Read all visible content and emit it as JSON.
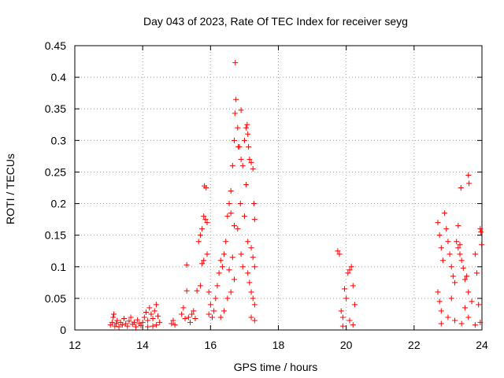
{
  "chart_data": {
    "type": "scatter",
    "title": "Day 043 of 2023, Rate Of TEC Index for receiver seyg",
    "xlabel": "GPS time / hours",
    "ylabel": "ROTI / TECUs",
    "xlim": [
      12,
      24
    ],
    "ylim": [
      0,
      0.45
    ],
    "xticks": [
      12,
      14,
      16,
      18,
      20,
      22,
      24
    ],
    "yticks": [
      0,
      0.05,
      0.1,
      0.15,
      0.2,
      0.25,
      0.3,
      0.35,
      0.4,
      0.45
    ],
    "grid": true,
    "marker": "+",
    "color": "#ff0000",
    "series": [
      {
        "points": [
          [
            13.05,
            0.008
          ],
          [
            13.1,
            0.012
          ],
          [
            13.13,
            0.02
          ],
          [
            13.15,
            0.025
          ],
          [
            13.18,
            0.006
          ],
          [
            13.22,
            0.01
          ],
          [
            13.25,
            0.015
          ],
          [
            13.3,
            0.005
          ],
          [
            13.35,
            0.012
          ],
          [
            13.4,
            0.008
          ],
          [
            13.45,
            0.018
          ],
          [
            13.5,
            0.01
          ],
          [
            13.55,
            0.006
          ],
          [
            13.6,
            0.014
          ],
          [
            13.65,
            0.02
          ],
          [
            13.7,
            0.009
          ],
          [
            13.75,
            0.012
          ],
          [
            13.8,
            0.005
          ],
          [
            13.85,
            0.016
          ],
          [
            13.9,
            0.01
          ],
          [
            13.95,
            0.007
          ],
          [
            14.0,
            0.012
          ],
          [
            14.05,
            0.02
          ],
          [
            14.1,
            0.028
          ],
          [
            14.15,
            0.015
          ],
          [
            14.2,
            0.035
          ],
          [
            14.25,
            0.025
          ],
          [
            14.3,
            0.018
          ],
          [
            14.35,
            0.03
          ],
          [
            14.4,
            0.04
          ],
          [
            14.45,
            0.022
          ],
          [
            14.5,
            0.012
          ],
          [
            14.3,
            0.006
          ],
          [
            14.15,
            0.005
          ],
          [
            14.4,
            0.008
          ],
          [
            14.85,
            0.01
          ],
          [
            14.9,
            0.015
          ],
          [
            14.95,
            0.008
          ],
          [
            15.15,
            0.025
          ],
          [
            15.2,
            0.035
          ],
          [
            15.25,
            0.018
          ],
          [
            15.3,
            0.103
          ],
          [
            15.35,
            0.02
          ],
          [
            15.3,
            0.062
          ],
          [
            15.4,
            0.012
          ],
          [
            15.45,
            0.025
          ],
          [
            15.5,
            0.03
          ],
          [
            15.55,
            0.018
          ],
          [
            15.6,
            0.062
          ],
          [
            15.65,
            0.14
          ],
          [
            15.7,
            0.15
          ],
          [
            15.75,
            0.16
          ],
          [
            15.8,
            0.18
          ],
          [
            15.85,
            0.175
          ],
          [
            15.9,
            0.17
          ],
          [
            15.82,
            0.228
          ],
          [
            15.87,
            0.225
          ],
          [
            15.75,
            0.105
          ],
          [
            15.8,
            0.11
          ],
          [
            15.9,
            0.12
          ],
          [
            15.95,
            0.06
          ],
          [
            16.0,
            0.04
          ],
          [
            15.7,
            0.07
          ],
          [
            15.95,
            0.025
          ],
          [
            16.05,
            0.02
          ],
          [
            16.1,
            0.03
          ],
          [
            16.15,
            0.05
          ],
          [
            16.2,
            0.07
          ],
          [
            16.25,
            0.09
          ],
          [
            16.3,
            0.11
          ],
          [
            16.35,
            0.1
          ],
          [
            16.4,
            0.12
          ],
          [
            16.45,
            0.14
          ],
          [
            16.5,
            0.18
          ],
          [
            16.55,
            0.2
          ],
          [
            16.6,
            0.22
          ],
          [
            16.65,
            0.26
          ],
          [
            16.7,
            0.3
          ],
          [
            16.72,
            0.343
          ],
          [
            16.73,
            0.423
          ],
          [
            16.75,
            0.365
          ],
          [
            16.8,
            0.32
          ],
          [
            16.85,
            0.29
          ],
          [
            16.9,
            0.27
          ],
          [
            16.95,
            0.26
          ],
          [
            16.9,
            0.348
          ],
          [
            16.82,
            0.29
          ],
          [
            16.88,
            0.2
          ],
          [
            16.6,
            0.185
          ],
          [
            16.7,
            0.165
          ],
          [
            16.8,
            0.16
          ],
          [
            16.9,
            0.12
          ],
          [
            16.95,
            0.1
          ],
          [
            16.7,
            0.08
          ],
          [
            16.6,
            0.06
          ],
          [
            16.5,
            0.05
          ],
          [
            16.4,
            0.03
          ],
          [
            16.3,
            0.02
          ],
          [
            16.55,
            0.095
          ],
          [
            16.65,
            0.115
          ],
          [
            17.0,
            0.3
          ],
          [
            17.05,
            0.32
          ],
          [
            17.08,
            0.325
          ],
          [
            17.1,
            0.31
          ],
          [
            17.12,
            0.29
          ],
          [
            17.15,
            0.27
          ],
          [
            17.2,
            0.265
          ],
          [
            17.25,
            0.255
          ],
          [
            17.28,
            0.2
          ],
          [
            17.3,
            0.175
          ],
          [
            17.2,
            0.13
          ],
          [
            17.25,
            0.115
          ],
          [
            17.3,
            0.1
          ],
          [
            17.1,
            0.09
          ],
          [
            17.15,
            0.075
          ],
          [
            17.2,
            0.06
          ],
          [
            17.25,
            0.05
          ],
          [
            17.3,
            0.04
          ],
          [
            17.05,
            0.23
          ],
          [
            17.0,
            0.18
          ],
          [
            17.1,
            0.14
          ],
          [
            17.2,
            0.02
          ],
          [
            17.3,
            0.015
          ],
          [
            19.75,
            0.125
          ],
          [
            19.8,
            0.12
          ],
          [
            19.85,
            0.03
          ],
          [
            19.9,
            0.02
          ],
          [
            19.95,
            0.065
          ],
          [
            20.0,
            0.05
          ],
          [
            20.05,
            0.09
          ],
          [
            20.1,
            0.095
          ],
          [
            20.15,
            0.1
          ],
          [
            20.2,
            0.07
          ],
          [
            20.25,
            0.04
          ],
          [
            20.1,
            0.015
          ],
          [
            20.2,
            0.008
          ],
          [
            19.9,
            0.006
          ],
          [
            22.7,
            0.17
          ],
          [
            22.75,
            0.15
          ],
          [
            22.8,
            0.13
          ],
          [
            22.85,
            0.11
          ],
          [
            22.7,
            0.06
          ],
          [
            22.75,
            0.045
          ],
          [
            22.8,
            0.03
          ],
          [
            22.9,
            0.185
          ],
          [
            22.95,
            0.16
          ],
          [
            23.0,
            0.14
          ],
          [
            23.05,
            0.12
          ],
          [
            23.1,
            0.1
          ],
          [
            23.15,
            0.085
          ],
          [
            23.2,
            0.075
          ],
          [
            23.25,
            0.14
          ],
          [
            23.3,
            0.13
          ],
          [
            23.35,
            0.12
          ],
          [
            23.4,
            0.11
          ],
          [
            23.45,
            0.098
          ],
          [
            23.5,
            0.08
          ],
          [
            23.3,
            0.165
          ],
          [
            23.35,
            0.135
          ],
          [
            23.38,
            0.225
          ],
          [
            23.6,
            0.245
          ],
          [
            23.62,
            0.232
          ],
          [
            23.55,
            0.085
          ],
          [
            23.6,
            0.06
          ],
          [
            23.7,
            0.045
          ],
          [
            23.8,
            0.12
          ],
          [
            23.85,
            0.09
          ],
          [
            23.9,
            0.04
          ],
          [
            23.95,
            0.16
          ],
          [
            23.97,
            0.155
          ],
          [
            23.99,
            0.135
          ],
          [
            22.8,
            0.01
          ],
          [
            23.0,
            0.02
          ],
          [
            23.2,
            0.015
          ],
          [
            23.4,
            0.01
          ],
          [
            23.6,
            0.02
          ],
          [
            23.8,
            0.008
          ],
          [
            23.95,
            0.012
          ],
          [
            23.1,
            0.05
          ],
          [
            23.5,
            0.035
          ]
        ]
      }
    ]
  }
}
